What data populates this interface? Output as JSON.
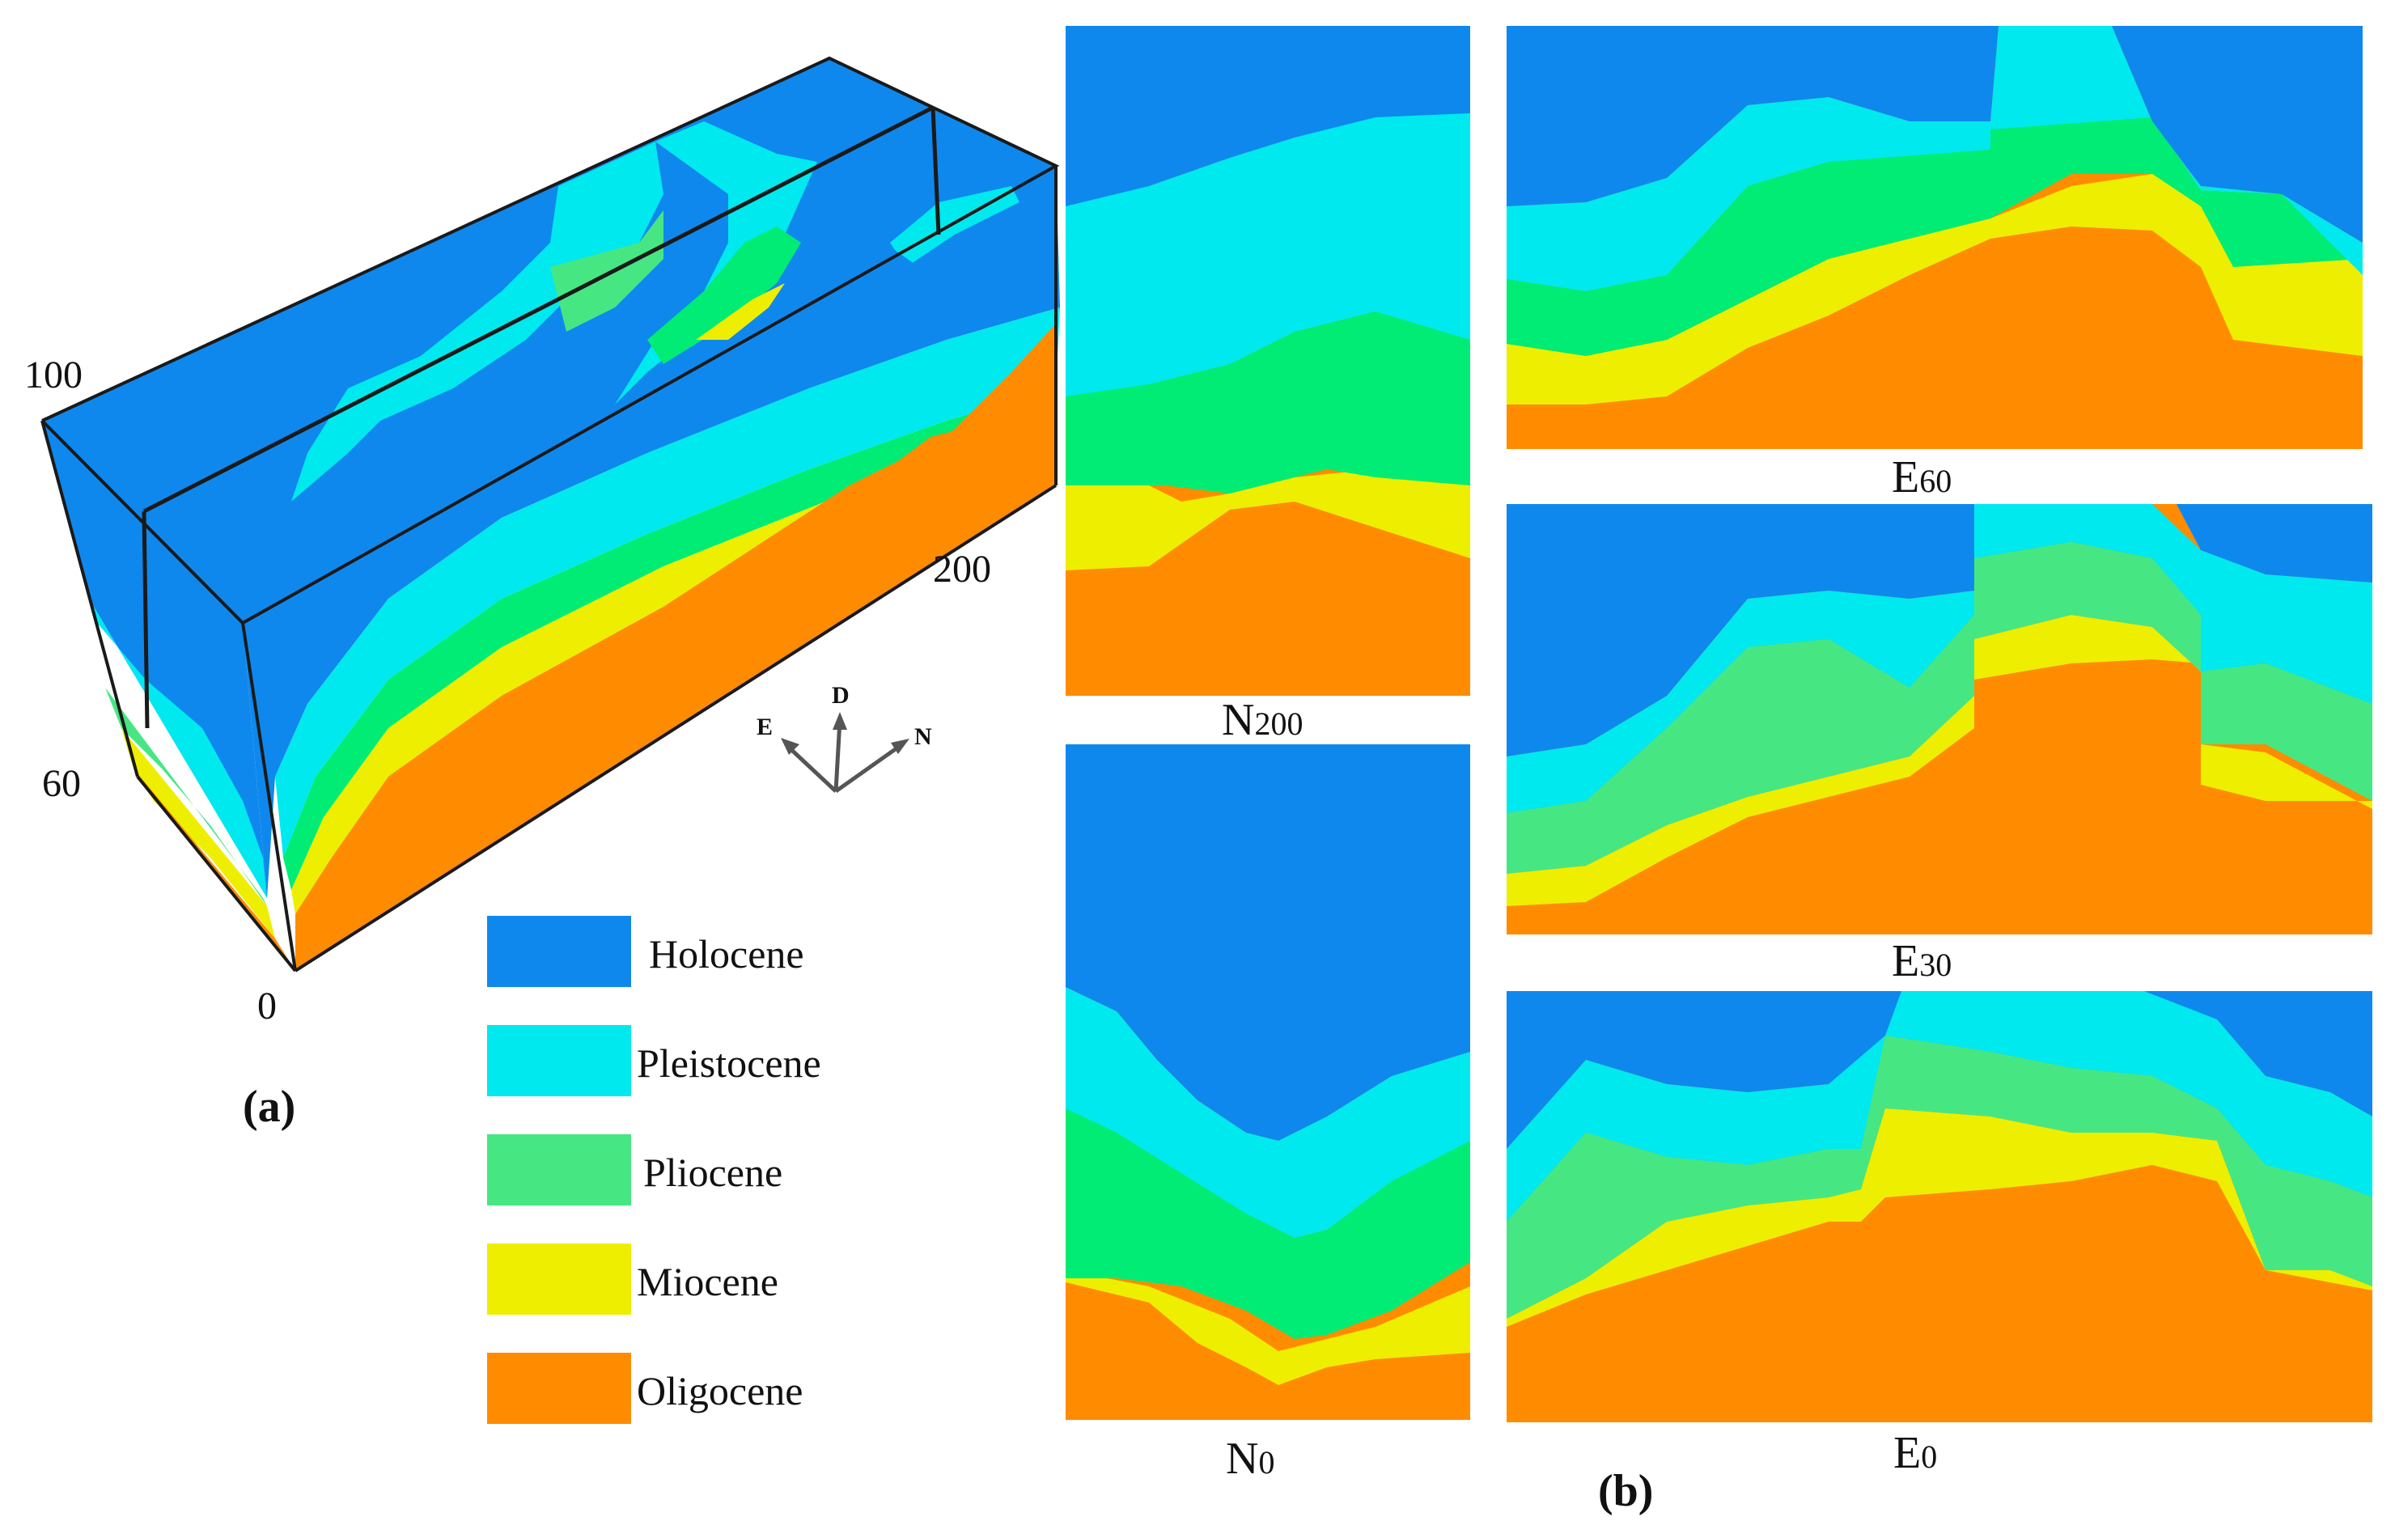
{
  "colors": {
    "Holocene": "#0f88ee",
    "Pleistocene": "#00e9ee",
    "Pliocene": "#46e783",
    "Pliocene_bright": "#00ec74",
    "Miocene": "#eeee00",
    "Miocene_bright": "#ffff00",
    "Oligocene": "#ff8c00",
    "edge": "#1a1a1a"
  },
  "block": {
    "axis_labels": {
      "top_left": "100",
      "mid_left": "60",
      "bottom": "0",
      "right": "200"
    },
    "directions": {
      "E": "E",
      "D": "D",
      "N": "N"
    },
    "panel_label": "(a)"
  },
  "legend": {
    "items": [
      {
        "label": "Holocene",
        "color_key": "Holocene"
      },
      {
        "label": "Pleistocene",
        "color_key": "Pleistocene"
      },
      {
        "label": "Pliocene",
        "color_key": "Pliocene"
      },
      {
        "label": "Miocene",
        "color_key": "Miocene"
      },
      {
        "label": "Oligocene",
        "color_key": "Oligocene"
      }
    ]
  },
  "sections": {
    "panel_label": "(b)",
    "N200": {
      "main": "N",
      "sub": "200"
    },
    "N0": {
      "main": "N",
      "sub": "0"
    },
    "E60": {
      "main": "E",
      "sub": "60"
    },
    "E30": {
      "main": "E",
      "sub": "30"
    },
    "E0": {
      "main": "E",
      "sub": "0"
    }
  }
}
